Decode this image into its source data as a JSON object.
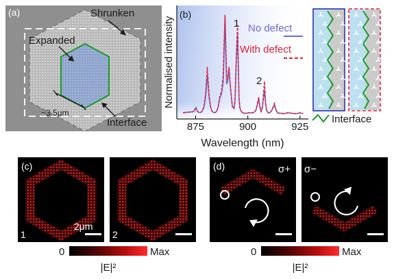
{
  "panel_a": {
    "label": "(a)",
    "shrunken": "Shrunken",
    "expanded": "Expanded",
    "interface": "Interface",
    "scale": "~3.5μm"
  },
  "panel_b": {
    "label": "(b)",
    "peak1": "1",
    "peak2": "2",
    "inset_label": "Interface",
    "colors": {
      "no_defect": "#6a6ad8",
      "with_defect": "#e0203a",
      "interface": "#1d9a2a"
    }
  },
  "chart_data": {
    "type": "line",
    "xlabel": "Wavelength (nm)",
    "ylabel": "Normalised intensity",
    "xlim": [
      866,
      929
    ],
    "ylim": [
      0,
      1.05
    ],
    "x_ticks": [
      875,
      900,
      925
    ],
    "x_tick_labels": [
      "875",
      "900",
      "925"
    ],
    "grid": false,
    "legend_position": "top-right",
    "series": [
      {
        "name": "No defect",
        "color": "#6a6ad8",
        "style": "solid",
        "x": [
          869,
          874,
          875.2,
          876,
          877,
          878,
          879,
          879.8,
          880.6,
          881.4,
          882.2,
          883,
          884,
          885,
          885.8,
          886.6,
          887.4,
          888.2,
          888.6,
          889.1,
          889.5,
          889.9,
          890.3,
          891,
          891.8,
          892.6,
          893.4,
          893.9,
          894.5,
          895.1,
          895.5,
          895.8,
          896.2,
          896.6,
          897.4,
          898.4,
          899.4,
          900.4,
          901.4,
          902.4,
          903.4,
          904,
          904.6,
          905.2,
          905.8,
          906.4,
          907,
          907.5,
          908,
          908.5,
          909,
          909.8,
          910.6,
          911.4,
          912.2,
          912.8,
          913.4,
          914.2,
          915,
          916,
          917.5,
          919,
          921,
          923,
          925,
          926.5
        ],
        "y": [
          0.06,
          0.07,
          0.11,
          0.07,
          0.06,
          0.07,
          0.11,
          0.22,
          0.42,
          0.22,
          0.11,
          0.07,
          0.06,
          0.07,
          0.11,
          0.2,
          0.24,
          0.35,
          0.6,
          0.98,
          0.62,
          0.34,
          0.35,
          0.48,
          0.28,
          0.12,
          0.1,
          0.17,
          0.55,
          0.82,
          0.48,
          0.2,
          0.11,
          0.08,
          0.06,
          0.055,
          0.055,
          0.06,
          0.06,
          0.06,
          0.07,
          0.09,
          0.14,
          0.19,
          0.11,
          0.07,
          0.11,
          0.2,
          0.28,
          0.15,
          0.08,
          0.06,
          0.06,
          0.08,
          0.11,
          0.14,
          0.09,
          0.06,
          0.055,
          0.055,
          0.05,
          0.06,
          0.055,
          0.05,
          0.06,
          0.05
        ]
      },
      {
        "name": "With defect",
        "color": "#e0203a",
        "style": "dashed",
        "x": [
          869,
          874,
          875.2,
          876,
          877,
          878,
          879,
          879.8,
          880.6,
          881.4,
          882.2,
          883,
          884,
          885,
          885.8,
          886.6,
          887.4,
          888.2,
          888.6,
          889.1,
          889.5,
          889.9,
          890.3,
          891,
          891.8,
          892.6,
          893.4,
          893.9,
          894.5,
          895.1,
          895.5,
          895.8,
          896.2,
          896.6,
          897.4,
          898.4,
          899.4,
          900.4,
          901.4,
          902.4,
          903.4,
          904,
          904.6,
          905.2,
          905.8,
          906.4,
          907,
          907.5,
          908,
          908.5,
          909,
          909.8,
          910.6,
          911.4,
          912.2,
          912.8,
          913.4,
          914.2,
          915,
          916,
          917.5,
          919,
          921,
          923,
          925,
          926.5
        ],
        "y": [
          0.06,
          0.07,
          0.1,
          0.07,
          0.06,
          0.07,
          0.12,
          0.24,
          0.5,
          0.24,
          0.11,
          0.07,
          0.06,
          0.07,
          0.11,
          0.22,
          0.26,
          0.42,
          0.7,
          1.0,
          0.7,
          0.38,
          0.38,
          0.5,
          0.28,
          0.12,
          0.1,
          0.19,
          0.62,
          0.9,
          0.5,
          0.2,
          0.11,
          0.08,
          0.06,
          0.055,
          0.055,
          0.06,
          0.06,
          0.06,
          0.07,
          0.09,
          0.15,
          0.21,
          0.12,
          0.07,
          0.12,
          0.24,
          0.36,
          0.17,
          0.08,
          0.06,
          0.06,
          0.08,
          0.12,
          0.15,
          0.09,
          0.06,
          0.055,
          0.055,
          0.05,
          0.06,
          0.055,
          0.05,
          0.06,
          0.05
        ]
      }
    ]
  },
  "panel_c": {
    "label": "(c)",
    "map1": "1",
    "map2": "2",
    "scale": "2μm",
    "cbar_min": "0",
    "cbar_max": "Max",
    "cbar_label": "|E|²"
  },
  "panel_d": {
    "label": "(d)",
    "sigma_plus": "σ+",
    "sigma_minus": "σ−",
    "cbar_min": "0",
    "cbar_max": "Max",
    "cbar_label": "|E|²"
  }
}
